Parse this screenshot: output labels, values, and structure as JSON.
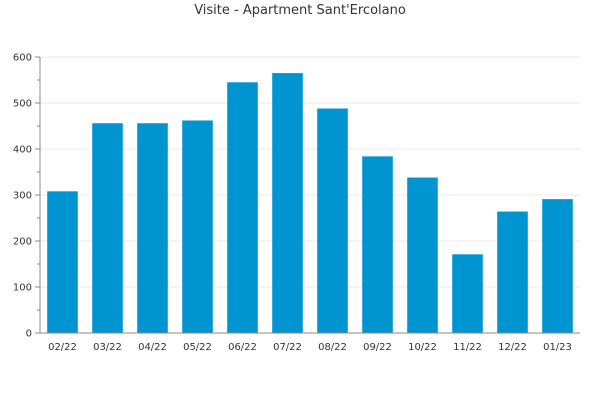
{
  "chart_data": {
    "type": "bar",
    "title": "Visite - Apartment Sant'Ercolano",
    "xlabel": "",
    "ylabel": "",
    "categories": [
      "02/22",
      "03/22",
      "04/22",
      "05/22",
      "06/22",
      "07/22",
      "08/22",
      "09/22",
      "10/22",
      "11/22",
      "12/22",
      "01/23"
    ],
    "values": [
      308,
      456,
      456,
      462,
      545,
      565,
      488,
      384,
      338,
      171,
      264,
      291
    ],
    "ylim": [
      0,
      600
    ],
    "yticks": [
      "0",
      "100",
      "200",
      "300",
      "400",
      "500",
      "600"
    ],
    "grid": true,
    "colors": {
      "bar": "#0095d1",
      "grid": "#e8e8e8",
      "axis": "#888888",
      "text": "#333333"
    }
  }
}
